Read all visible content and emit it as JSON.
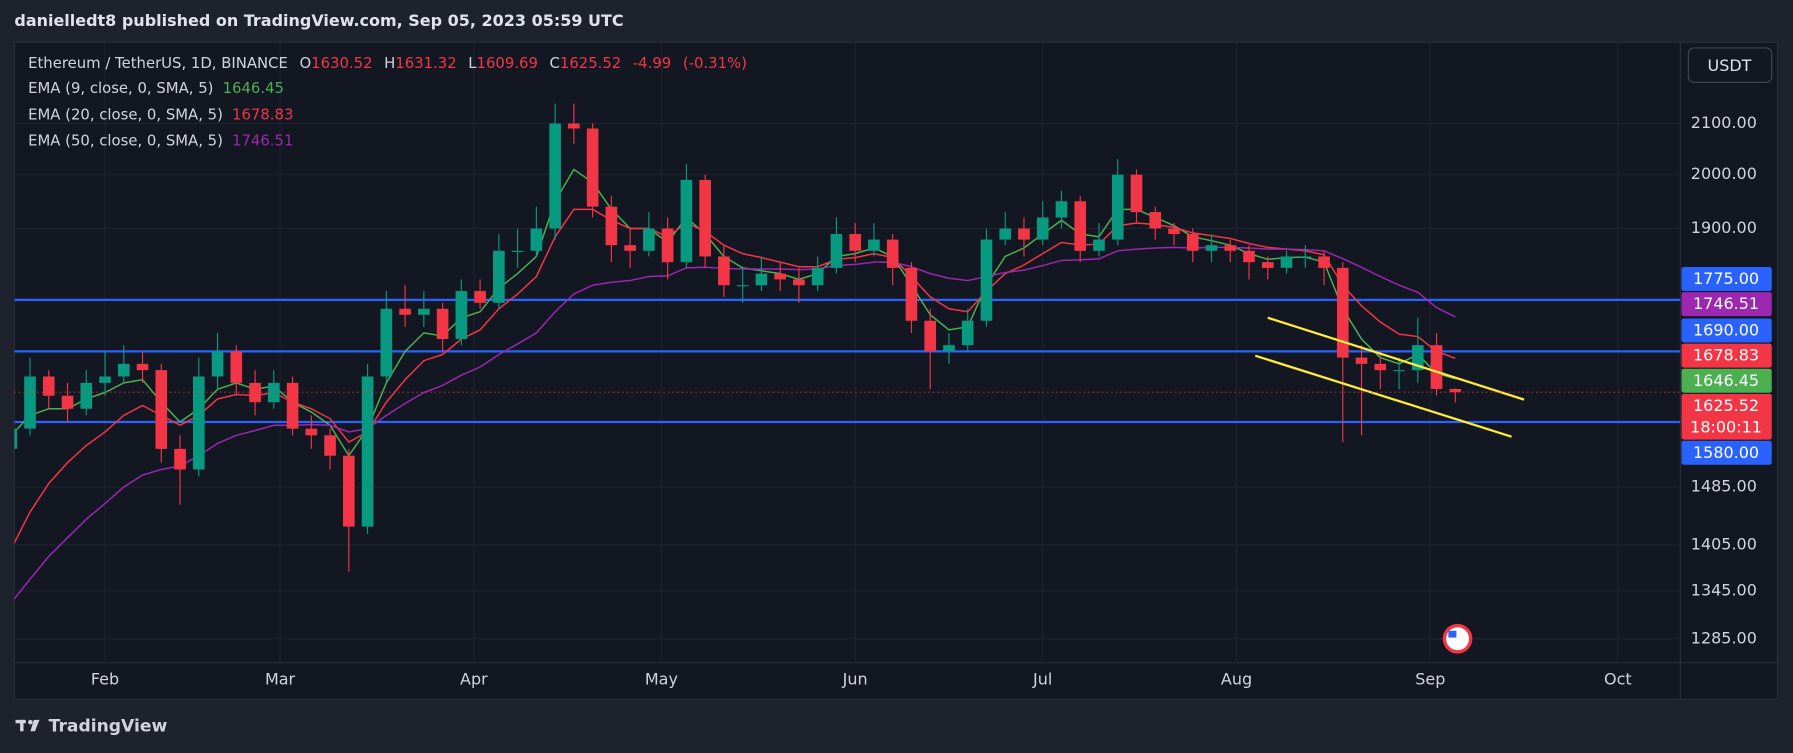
{
  "header": {
    "publisher": "danielledt8 published on TradingView.com, Sep 05, 2023 05:59 UTC"
  },
  "footer": {
    "brand": "TradingView"
  },
  "chart_data": {
    "type": "candlestick",
    "symbol": "Ethereum / TetherUS, 1D, BINANCE",
    "ohlc_labels": [
      "O",
      "H",
      "L",
      "C"
    ],
    "change": -4.99,
    "change_percent": {
      "value": -0.31,
      "label": "(-0.31%)"
    },
    "currency": "USDT",
    "countdown": "18:00:11",
    "log_scale": true,
    "grid": true,
    "up_color": "#089981",
    "down_color": "#f23645",
    "x": [
      0,
      3,
      6,
      9,
      12,
      15,
      18,
      21,
      24,
      27,
      30,
      33,
      36,
      39,
      42,
      45,
      48,
      51,
      54,
      57,
      60,
      63,
      66,
      69,
      72,
      75,
      78,
      81,
      84,
      87,
      90,
      93,
      96,
      99,
      102,
      105,
      108,
      111,
      114,
      117,
      120,
      123,
      126,
      129,
      132,
      135,
      138,
      141,
      144,
      147,
      150,
      153,
      156,
      159,
      162,
      165,
      168,
      171,
      174,
      177,
      180,
      183,
      186,
      189,
      192,
      195,
      198,
      201,
      204,
      207,
      210,
      213,
      216,
      219,
      222,
      225,
      228,
      231
    ],
    "open": [
      1540,
      1570,
      1650,
      1620,
      1600,
      1640,
      1650,
      1670,
      1660,
      1540,
      1510,
      1650,
      1690,
      1640,
      1610,
      1640,
      1570,
      1560,
      1530,
      1430,
      1650,
      1760,
      1750,
      1760,
      1710,
      1790,
      1770,
      1860,
      1860,
      1900,
      2100,
      2090,
      1940,
      1870,
      1860,
      1900,
      1840,
      1990,
      1850,
      1800,
      1800,
      1820,
      1810,
      1800,
      1830,
      1890,
      1860,
      1880,
      1830,
      1740,
      1690,
      1700,
      1740,
      1880,
      1900,
      1880,
      1920,
      1950,
      1860,
      1880,
      2000,
      1930,
      1900,
      1890,
      1860,
      1870,
      1860,
      1840,
      1830,
      1850,
      1850,
      1830,
      1680,
      1670,
      1660,
      1660,
      1700,
      1630.52
    ],
    "high": [
      1590,
      1680,
      1660,
      1640,
      1660,
      1690,
      1700,
      1690,
      1670,
      1560,
      1680,
      1720,
      1700,
      1660,
      1660,
      1650,
      1590,
      1570,
      1540,
      1670,
      1790,
      1800,
      1790,
      1770,
      1810,
      1810,
      1890,
      1900,
      1940,
      2140,
      2140,
      2100,
      1960,
      1900,
      1930,
      1920,
      2020,
      2000,
      1870,
      1830,
      1850,
      1840,
      1830,
      1850,
      1920,
      1910,
      1910,
      1890,
      1840,
      1760,
      1720,
      1760,
      1900,
      1930,
      1920,
      1950,
      1970,
      1960,
      1910,
      2030,
      2010,
      1940,
      1910,
      1900,
      1890,
      1880,
      1870,
      1850,
      1860,
      1870,
      1860,
      1840,
      1700,
      1690,
      1680,
      1745,
      1720,
      1631.32
    ],
    "low": [
      1520,
      1560,
      1600,
      1580,
      1590,
      1620,
      1640,
      1640,
      1520,
      1460,
      1500,
      1630,
      1620,
      1590,
      1600,
      1560,
      1540,
      1510,
      1370,
      1420,
      1640,
      1730,
      1730,
      1690,
      1700,
      1760,
      1760,
      1830,
      1850,
      1880,
      2060,
      1920,
      1840,
      1830,
      1850,
      1810,
      1830,
      1830,
      1780,
      1770,
      1790,
      1790,
      1770,
      1790,
      1820,
      1840,
      1850,
      1800,
      1720,
      1630,
      1670,
      1690,
      1730,
      1870,
      1850,
      1870,
      1900,
      1840,
      1850,
      1870,
      1910,
      1880,
      1870,
      1840,
      1840,
      1840,
      1810,
      1810,
      1820,
      1830,
      1800,
      1550,
      1560,
      1630,
      1630,
      1640,
      1620,
      1609.69
    ],
    "close": [
      1570,
      1650,
      1620,
      1600,
      1640,
      1650,
      1670,
      1660,
      1540,
      1510,
      1650,
      1690,
      1640,
      1610,
      1640,
      1570,
      1560,
      1530,
      1430,
      1650,
      1760,
      1750,
      1760,
      1710,
      1790,
      1770,
      1860,
      1860,
      1900,
      2100,
      2090,
      1940,
      1870,
      1860,
      1900,
      1840,
      1990,
      1850,
      1800,
      1800,
      1820,
      1810,
      1800,
      1830,
      1890,
      1860,
      1880,
      1830,
      1740,
      1690,
      1700,
      1740,
      1880,
      1900,
      1880,
      1920,
      1950,
      1860,
      1880,
      2000,
      1930,
      1900,
      1890,
      1860,
      1870,
      1860,
      1840,
      1830,
      1850,
      1850,
      1830,
      1680,
      1670,
      1660,
      1660,
      1700,
      1630.52,
      1625.52
    ],
    "ema": [
      {
        "name": "EMA (9, close, 0, SMA, 5)",
        "color": "#4caf50",
        "values": [
          1560,
          1590,
          1600,
          1600,
          1615,
          1625,
          1640,
          1645,
          1610,
          1580,
          1600,
          1630,
          1640,
          1630,
          1635,
          1610,
          1595,
          1575,
          1530,
          1570,
          1640,
          1690,
          1720,
          1715,
          1745,
          1755,
          1795,
          1820,
          1850,
          1950,
          2010,
          1985,
          1935,
          1900,
          1900,
          1875,
          1920,
          1890,
          1850,
          1830,
          1825,
          1820,
          1810,
          1820,
          1850,
          1855,
          1865,
          1850,
          1800,
          1750,
          1725,
          1730,
          1800,
          1850,
          1865,
          1890,
          1915,
          1890,
          1885,
          1935,
          1935,
          1920,
          1905,
          1885,
          1878,
          1870,
          1855,
          1845,
          1848,
          1849,
          1840,
          1760,
          1710,
          1680,
          1670,
          1685,
          1655,
          1646.45
        ]
      },
      {
        "name": "EMA (20, close, 0, SMA, 5)",
        "color": "#f23645",
        "values": [
          1400,
          1450,
          1490,
          1520,
          1545,
          1565,
          1590,
          1605,
          1590,
          1575,
          1590,
          1615,
          1622,
          1620,
          1625,
          1610,
          1600,
          1585,
          1550,
          1565,
          1610,
          1645,
          1675,
          1685,
          1710,
          1725,
          1760,
          1785,
          1815,
          1885,
          1935,
          1935,
          1915,
          1900,
          1900,
          1885,
          1910,
          1895,
          1870,
          1855,
          1848,
          1840,
          1832,
          1832,
          1845,
          1848,
          1855,
          1848,
          1815,
          1780,
          1760,
          1755,
          1790,
          1820,
          1835,
          1855,
          1875,
          1870,
          1872,
          1905,
          1910,
          1907,
          1902,
          1892,
          1887,
          1882,
          1873,
          1866,
          1863,
          1860,
          1853,
          1800,
          1765,
          1738,
          1718,
          1714,
          1690,
          1678.83
        ]
      },
      {
        "name": "EMA (50, close, 0, SMA, 5)",
        "color": "#9c27b0",
        "values": [
          1330,
          1360,
          1390,
          1415,
          1440,
          1462,
          1485,
          1502,
          1510,
          1515,
          1530,
          1548,
          1560,
          1567,
          1575,
          1575,
          1576,
          1575,
          1565,
          1570,
          1590,
          1608,
          1625,
          1636,
          1652,
          1665,
          1685,
          1702,
          1720,
          1755,
          1785,
          1800,
          1805,
          1808,
          1815,
          1816,
          1830,
          1831,
          1829,
          1828,
          1828,
          1828,
          1827,
          1828,
          1834,
          1836,
          1840,
          1840,
          1832,
          1820,
          1812,
          1808,
          1815,
          1822,
          1826,
          1834,
          1843,
          1844,
          1846,
          1860,
          1863,
          1865,
          1866,
          1865,
          1866,
          1866,
          1865,
          1863,
          1863,
          1862,
          1860,
          1846,
          1831,
          1815,
          1800,
          1788,
          1762,
          1746.51
        ]
      }
    ],
    "levels": [
      {
        "value": 1775,
        "label": "1775.00"
      },
      {
        "value": 1690,
        "label": "1690.00"
      },
      {
        "value": 1580,
        "label": "1580.00"
      }
    ],
    "level_color": "#2962ff",
    "trendlines": [
      {
        "color": "#ffeb3b",
        "x": [
          201,
          242
        ],
        "y": [
          1745,
          1614
        ]
      },
      {
        "color": "#ffeb3b",
        "x": [
          199,
          240
        ],
        "y": [
          1683,
          1558
        ]
      }
    ],
    "xlim": [
      0.5,
      267
    ],
    "xticks": [
      {
        "value": 15,
        "label": "Feb"
      },
      {
        "value": 43,
        "label": "Mar"
      },
      {
        "value": 74,
        "label": "Apr"
      },
      {
        "value": 104,
        "label": "May"
      },
      {
        "value": 135,
        "label": "Jun"
      },
      {
        "value": 165,
        "label": "Jul"
      },
      {
        "value": 196,
        "label": "Aug"
      },
      {
        "value": 227,
        "label": "Sep"
      },
      {
        "value": 257,
        "label": "Oct"
      }
    ],
    "ylim": [
      1256,
      2269
    ],
    "yticks": [
      {
        "value": 1285,
        "label": "1285.00"
      },
      {
        "value": 1345,
        "label": "1345.00"
      },
      {
        "value": 1405,
        "label": "1405.00"
      },
      {
        "value": 1485,
        "label": "1485.00"
      },
      {
        "value": 1900,
        "label": "1900.00"
      },
      {
        "value": 2000,
        "label": "2000.00"
      },
      {
        "value": 2100,
        "label": "2100.00"
      }
    ]
  }
}
